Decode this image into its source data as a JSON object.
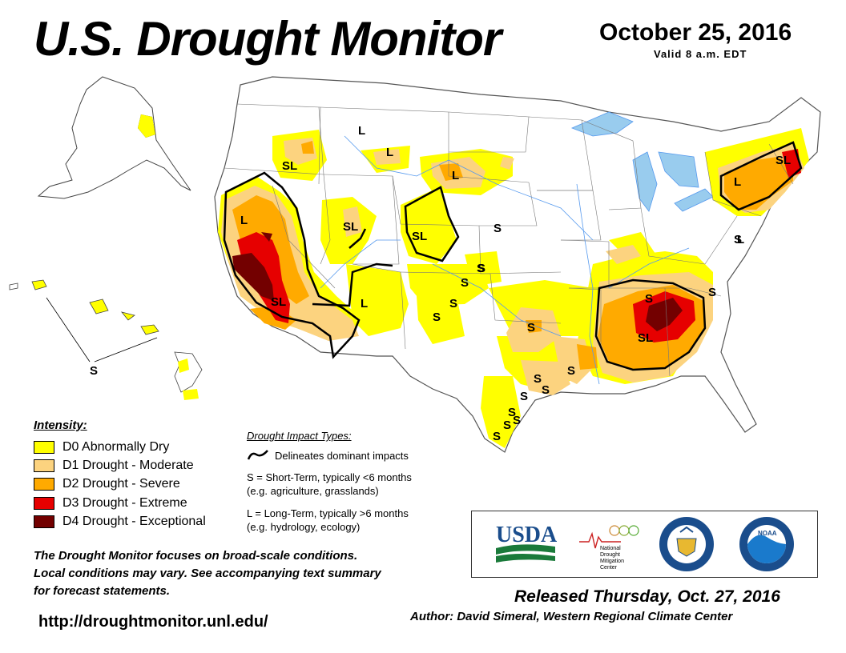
{
  "header": {
    "title": "U.S. Drought Monitor",
    "date": "October 25, 2016",
    "valid": "Valid 8 a.m. EDT"
  },
  "colors": {
    "D0": "#ffff00",
    "D1": "#fcd37f",
    "D2": "#ffaa00",
    "D3": "#e60000",
    "D4": "#730000",
    "water": "#99ccee",
    "rivers": "#5599ee"
  },
  "map": {
    "impact_labels": [
      "L",
      "L",
      "L",
      "SL",
      "SL",
      "SL",
      "SL",
      "L",
      "L",
      "S",
      "S",
      "S",
      "S",
      "S",
      "S",
      "S",
      "S",
      "S",
      "S",
      "S",
      "S",
      "S",
      "S",
      "S",
      "S",
      "S",
      "SL",
      "L",
      "SL",
      "S",
      "L",
      "L",
      "S"
    ]
  },
  "legend": {
    "heading": "Intensity:",
    "items": [
      {
        "label": "D0 Abnormally Dry",
        "color": "#ffff00"
      },
      {
        "label": "D1 Drought - Moderate",
        "color": "#fcd37f"
      },
      {
        "label": "D2 Drought - Severe",
        "color": "#ffaa00"
      },
      {
        "label": "D3 Drought - Extreme",
        "color": "#e60000"
      },
      {
        "label": "D4 Drought - Exceptional",
        "color": "#730000"
      }
    ]
  },
  "impacts": {
    "heading": "Drought Impact Types:",
    "delineates": "Delineates dominant impacts",
    "short_term": "S = Short-Term, typically <6 months",
    "short_term_eg": "(e.g. agriculture, grasslands)",
    "long_term": "L = Long-Term, typically >6 months",
    "long_term_eg": "(e.g. hydrology, ecology)"
  },
  "note": {
    "line1": "The Drought Monitor focuses on broad-scale conditions.",
    "line2": "Local conditions may vary. See accompanying text summary",
    "line3": "for forecast statements."
  },
  "url": "http://droughtmonitor.unl.edu/",
  "logos": {
    "usda": "USDA",
    "ndmc_line1": "National",
    "ndmc_line2": "Drought",
    "ndmc_line3": "Mitigation",
    "ndmc_line4": "Center",
    "noaa": "NOAA"
  },
  "footer": {
    "released": "Released Thursday, Oct. 27, 2016",
    "author": "Author: David Simeral, Western Regional Climate Center"
  }
}
